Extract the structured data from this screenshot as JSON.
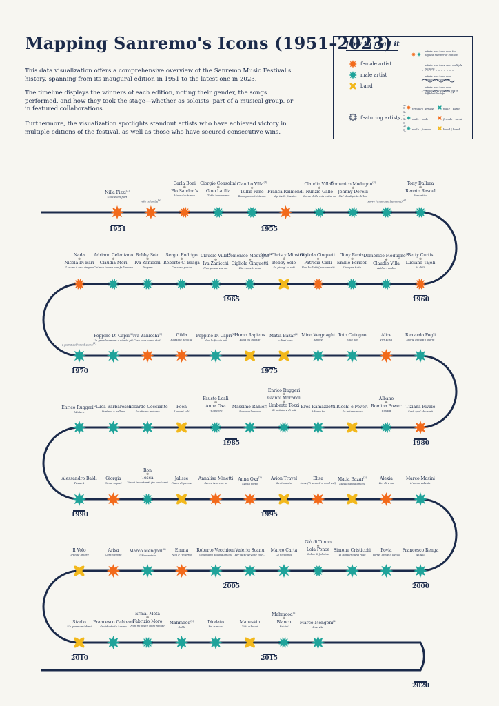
{
  "title": "Mapping Sanremo's Icons (1951–2023)",
  "intro": [
    "This data visualization offers a comprehensive overview of the Sanremo Music Festival's history, spanning from its inaugural edition in 1951 to the latest one in 2023.",
    "The timeline displays the winners of each edition, noting their gender, the songs performed, and how they took the stage—whether as soloists, part of a musical group, or in featured collaborations.",
    "Furthermore, the visualization spotlights standout artists who have achieved victory in multiple editions of the festival, as well as those who have secured consecutive wins."
  ],
  "legend": {
    "heading": "how to read it",
    "female": "female artist",
    "male": "male artist",
    "band": "band",
    "featuring": "featuring artists",
    "star_note": "artists who have won the highest number of editions",
    "multi_note": "artists who have won multiple editions",
    "consec_note": "artists who have won consecutive editions",
    "diff_note": "artists who have won consecutive editions but in different lineups",
    "combos": [
      "female | female",
      "male | band",
      "male | male",
      "female | band",
      "male | female",
      "band | band"
    ]
  },
  "colors": {
    "female": "#f26a1b",
    "male": "#1fa39a",
    "band": "#f2b81c",
    "line": "#1b2a4a"
  },
  "years": [
    "1951",
    "1955",
    "1960",
    "1965",
    "1970",
    "1975",
    "1980",
    "1985",
    "1990",
    "1995",
    "2000",
    "2005",
    "2010",
    "2015",
    "2020"
  ],
  "entries": [
    {
      "a": "Nilla Pizzi",
      "s": "Grazie dei fiori",
      "t": "f",
      "sup": "(2)"
    },
    {
      "a": "",
      "s": "Vola colomba",
      "t": "f",
      "sup": "(2)"
    },
    {
      "a": "Carla Boni",
      "b": "Flo Sandon's",
      "s": "Viale d'autunno",
      "t": "ff"
    },
    {
      "a": "Giorgio Consolini",
      "b": "Gino Latilla",
      "s": "Tutte le mamme",
      "t": "mm"
    },
    {
      "a": "Claudio Villa",
      "b": "Tullio Pane",
      "s": "Buongiorno tristezza",
      "t": "mm",
      "sup": "(4)"
    },
    {
      "a": "Franca Raimondi",
      "s": "Aprite le finestre",
      "t": "f"
    },
    {
      "a": "Claudio Villa",
      "b": "Nunzio Gallo",
      "s": "Corde della mia chitarra",
      "t": "mm",
      "sup": "(4)"
    },
    {
      "a": "Domenico Modugno",
      "b": "Johnny Dorelli",
      "s": "Nel blu dipinto di blu",
      "t": "mm",
      "sup": "(4)"
    },
    {
      "a": "",
      "s": "Piove (Ciao ciao bambina)",
      "t": "mm",
      "sup": "(2)"
    },
    {
      "a": "Tony Dallara",
      "b": "Renato Rascel",
      "s": "Romantica",
      "t": "mm"
    },
    {
      "a": "Betty Curtis",
      "b": "Luciano Tajoli",
      "s": "Al di là",
      "t": "fm"
    },
    {
      "a": "Domenico Modugno",
      "b": "Claudio Villa",
      "s": "Addio... addio",
      "t": "mm",
      "sup": "(4)"
    },
    {
      "a": "Tony Renis",
      "b": "Emilio Pericoli",
      "s": "Uno per tutte",
      "t": "mm"
    },
    {
      "a": "Gigliola Cinquetti",
      "b": "Patricia Carli",
      "s": "Non ho l'età (per amarti)",
      "t": "ff"
    },
    {
      "a": "New Christy Minstrels",
      "b": "Bobby Solo",
      "s": "Se piangi se ridi",
      "t": "bm"
    },
    {
      "a": "Domenico Modugno",
      "b": "Gigliola Cinquetti",
      "s": "Dio come ti amo",
      "t": "mf",
      "sup": "(4)"
    },
    {
      "a": "Claudio Villa",
      "b": "Iva Zanicchi",
      "s": "Non pensare a me",
      "t": "mf",
      "sup": "(4)"
    },
    {
      "a": "Sergio Endrigo",
      "b": "Roberto C. Braga",
      "s": "Canzone per te",
      "t": "mm"
    },
    {
      "a": "Bobby Solo",
      "b": "Iva Zanicchi",
      "s": "Zingara",
      "t": "mf"
    },
    {
      "a": "Adriano Celentano",
      "b": "Claudia Mori",
      "s": "Chi non lavora non fa l'amore",
      "t": "mf"
    },
    {
      "a": "Nada",
      "b": "Nicola Di Bari",
      "s": "Il cuore è uno zingaro",
      "t": "fm"
    },
    {
      "a": "",
      "s": "I giorni dell'arcobaleno",
      "t": "m",
      "sup": "(2)"
    },
    {
      "a": "Peppino Di Capri",
      "s": "Un grande amore e niente più",
      "t": "m",
      "sup": "(2)"
    },
    {
      "a": "Iva Zanicchi",
      "s": "Ciao cara come stai?",
      "t": "f",
      "sup": "(3)"
    },
    {
      "a": "Gilda",
      "s": "Ragazza del Sud",
      "t": "f"
    },
    {
      "a": "Peppino Di Capri",
      "s": "Non lo faccio più",
      "t": "m",
      "sup": "(2)"
    },
    {
      "a": "Homo Sapiens",
      "s": "Bella da morire",
      "t": "b"
    },
    {
      "a": "Matia Bazar",
      "s": "...e dirsi ciao",
      "t": "b",
      "sup": "(2)"
    },
    {
      "a": "Mino Vergnaghi",
      "s": "Amare",
      "t": "m"
    },
    {
      "a": "Toto Cutugno",
      "s": "Solo noi",
      "t": "m"
    },
    {
      "a": "Alice",
      "s": "Per Elisa",
      "t": "f"
    },
    {
      "a": "Riccardo Fogli",
      "s": "Storie di tutti i giorni",
      "t": "m"
    },
    {
      "a": "Tiziana Rivale",
      "s": "Sarà quel che sarà",
      "t": "f"
    },
    {
      "a": "Albano",
      "b": "Romina Power",
      "s": "Ci sarà",
      "t": "mf"
    },
    {
      "a": "Ricchi e Poveri",
      "s": "Se m'innamoro",
      "t": "b"
    },
    {
      "a": "Eros Ramazzotti",
      "s": "Adesso tu",
      "t": "m"
    },
    {
      "a": "Enrico Ruggeri",
      "b": "Gianni Morandi",
      "c": "Umberto Tozzi",
      "s": "Si può dare di più",
      "t": "mm"
    },
    {
      "a": "Massimo Ranieri",
      "s": "Perdere l'amore",
      "t": "m"
    },
    {
      "a": "Fausto Leali",
      "b": "Anna Oxa",
      "s": "Ti lascerò",
      "t": "mf"
    },
    {
      "a": "Pooh",
      "s": "Uomini soli",
      "t": "b"
    },
    {
      "a": "Riccardo Cocciante",
      "s": "Se stiamo insieme",
      "t": "m"
    },
    {
      "a": "Luca Barbarossa",
      "s": "Portami a ballare",
      "t": "m"
    },
    {
      "a": "Enrico Ruggeri",
      "s": "Mistero",
      "t": "m",
      "sup": "(2)"
    },
    {
      "a": "Alessandro Baldi",
      "s": "Passerà",
      "t": "m"
    },
    {
      "a": "Giorgia",
      "s": "Come saprei",
      "t": "f"
    },
    {
      "a": "Ron",
      "b": "Tosca",
      "s": "Vorrei incontrarti fra cent'anni",
      "t": "mf"
    },
    {
      "a": "Jalisse",
      "s": "Fiumi di parole",
      "t": "b"
    },
    {
      "a": "Annalisa Minetti",
      "s": "Senza te o con te",
      "t": "f"
    },
    {
      "a": "Anna Oxa",
      "s": "Senza pietà",
      "t": "f",
      "sup": "(2)"
    },
    {
      "a": "Avion Travel",
      "s": "Sentimento",
      "t": "b"
    },
    {
      "a": "Elisa",
      "s": "Luce (Tramonti a nord est)",
      "t": "f"
    },
    {
      "a": "Matia Bazar",
      "s": "Messaggio d'amore",
      "t": "b",
      "sup": "(2)"
    },
    {
      "a": "Alexia",
      "s": "Per dire no",
      "t": "f"
    },
    {
      "a": "Marco Masini",
      "s": "L'uomo volante",
      "t": "m"
    },
    {
      "a": "Francesco Renga",
      "s": "Angelo",
      "t": "m"
    },
    {
      "a": "Povia",
      "s": "Vorrei avere il becco",
      "t": "m"
    },
    {
      "a": "Simone Cristicchi",
      "s": "Ti regalerò una rosa",
      "t": "m"
    },
    {
      "a": "Giò di Tonno",
      "b": "Lola Ponce",
      "s": "Colpo di fulmine",
      "t": "mf"
    },
    {
      "a": "Marco Carta",
      "s": "La forza mia",
      "t": "m"
    },
    {
      "a": "Valerio Scanu",
      "s": "Per tutte le volte che...",
      "t": "m"
    },
    {
      "a": "Roberto Vecchioni",
      "s": "Chiamami ancora amore",
      "t": "m"
    },
    {
      "a": "Emma",
      "s": "Non è l'inferno",
      "t": "f"
    },
    {
      "a": "Marco Mengoni",
      "s": "L'Essenziale",
      "t": "m",
      "sup": "(2)"
    },
    {
      "a": "Arisa",
      "s": "Controvento",
      "t": "f"
    },
    {
      "a": "Il Volo",
      "s": "Grande amore",
      "t": "b"
    },
    {
      "a": "Stadio",
      "s": "Un giorno mi dirai",
      "t": "b"
    },
    {
      "a": "Francesco Gabbani",
      "s": "Occidentali's karma",
      "t": "m"
    },
    {
      "a": "Ermal Meta",
      "b": "Fabrizio Moro",
      "s": "Non mi avete fatto niente",
      "t": "mm"
    },
    {
      "a": "Mahmood",
      "s": "Soldi",
      "t": "m",
      "sup": "(2)"
    },
    {
      "a": "Diodato",
      "s": "Fai rumore",
      "t": "m"
    },
    {
      "a": "Maneskin",
      "s": "Zitti e buoni",
      "t": "b"
    },
    {
      "a": "Mahmood",
      "b": "Blanco",
      "s": "Brividi",
      "t": "mm",
      "sup": "(2)"
    },
    {
      "a": "Marco Mengoni",
      "s": "Due vite",
      "t": "m",
      "sup": "(2)"
    }
  ]
}
